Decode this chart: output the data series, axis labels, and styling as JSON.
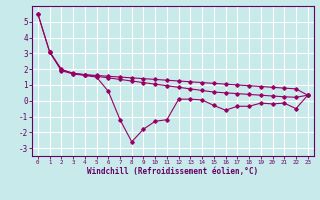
{
  "xlabel": "Windchill (Refroidissement éolien,°C)",
  "background_color": "#c8eaea",
  "grid_color": "#ffffff",
  "line_color": "#990066",
  "xlim": [
    -0.5,
    23.5
  ],
  "ylim": [
    -3.5,
    6.0
  ],
  "yticks": [
    -3,
    -2,
    -1,
    0,
    1,
    2,
    3,
    4,
    5
  ],
  "xticks": [
    0,
    1,
    2,
    3,
    4,
    5,
    6,
    7,
    8,
    9,
    10,
    11,
    12,
    13,
    14,
    15,
    16,
    17,
    18,
    19,
    20,
    21,
    22,
    23
  ],
  "line1_x": [
    0,
    1,
    2,
    3,
    4,
    5,
    6,
    7,
    8,
    9,
    10,
    11,
    12,
    13,
    14,
    15,
    16,
    17,
    18,
    19,
    20,
    21,
    22,
    23
  ],
  "line1_y": [
    5.5,
    3.1,
    1.9,
    1.7,
    1.6,
    1.5,
    0.6,
    -1.2,
    -2.6,
    -1.8,
    -1.3,
    -1.2,
    0.1,
    0.1,
    0.05,
    -0.3,
    -0.6,
    -0.35,
    -0.35,
    -0.15,
    -0.2,
    -0.15,
    -0.5,
    0.35
  ],
  "line2_x": [
    0,
    1,
    2,
    3,
    4,
    5,
    6,
    7,
    8,
    9,
    10,
    11,
    12,
    13,
    14,
    15,
    16,
    17,
    18,
    19,
    20,
    21,
    22,
    23
  ],
  "line2_y": [
    5.5,
    3.1,
    1.95,
    1.75,
    1.65,
    1.55,
    1.45,
    1.35,
    1.25,
    1.15,
    1.05,
    0.95,
    0.85,
    0.75,
    0.65,
    0.55,
    0.5,
    0.45,
    0.4,
    0.35,
    0.3,
    0.25,
    0.22,
    0.35
  ],
  "line3_x": [
    1,
    2,
    3,
    4,
    5,
    6,
    7,
    8,
    9,
    10,
    11,
    12,
    13,
    14,
    15,
    16,
    17,
    18,
    19,
    20,
    21,
    22,
    23
  ],
  "line3_y": [
    3.1,
    2.0,
    1.72,
    1.65,
    1.6,
    1.55,
    1.5,
    1.45,
    1.4,
    1.35,
    1.3,
    1.25,
    1.2,
    1.15,
    1.1,
    1.05,
    1.0,
    0.95,
    0.9,
    0.85,
    0.8,
    0.75,
    0.35
  ],
  "marker": "D",
  "markersize": 1.8,
  "linewidth": 0.8
}
